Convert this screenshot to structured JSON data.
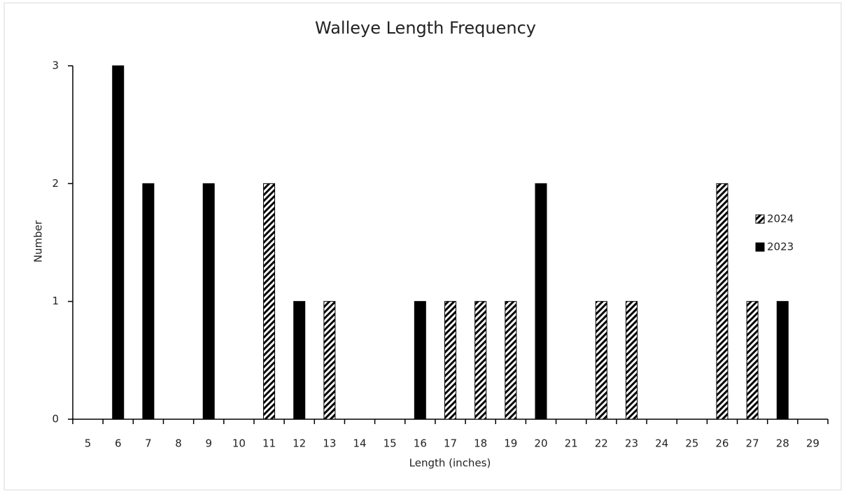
{
  "chart_data": {
    "type": "bar",
    "title": "Walleye Length Frequency",
    "x_label": "Length (inches)",
    "y_label": "Number",
    "categories": [
      5,
      6,
      7,
      8,
      9,
      10,
      11,
      12,
      13,
      14,
      15,
      16,
      17,
      18,
      19,
      20,
      21,
      22,
      23,
      24,
      25,
      26,
      27,
      28,
      29
    ],
    "series": [
      {
        "name": "2024",
        "color": "#000000",
        "pattern": "striped",
        "values": [
          0,
          0,
          0,
          0,
          0,
          0,
          2,
          0,
          1,
          0,
          0,
          0,
          1,
          1,
          1,
          0,
          0,
          1,
          1,
          0,
          0,
          2,
          1,
          0,
          0
        ]
      },
      {
        "name": "2023",
        "color": "#000000",
        "pattern": "solid",
        "values": [
          0,
          3,
          2,
          0,
          2,
          0,
          0,
          1,
          0,
          0,
          0,
          1,
          0,
          0,
          0,
          2,
          0,
          0,
          0,
          0,
          0,
          0,
          0,
          1,
          0
        ]
      }
    ],
    "ylim": [
      0,
      3
    ],
    "yticks": [
      0,
      1,
      2,
      3
    ],
    "grid": false,
    "legend": "right"
  }
}
